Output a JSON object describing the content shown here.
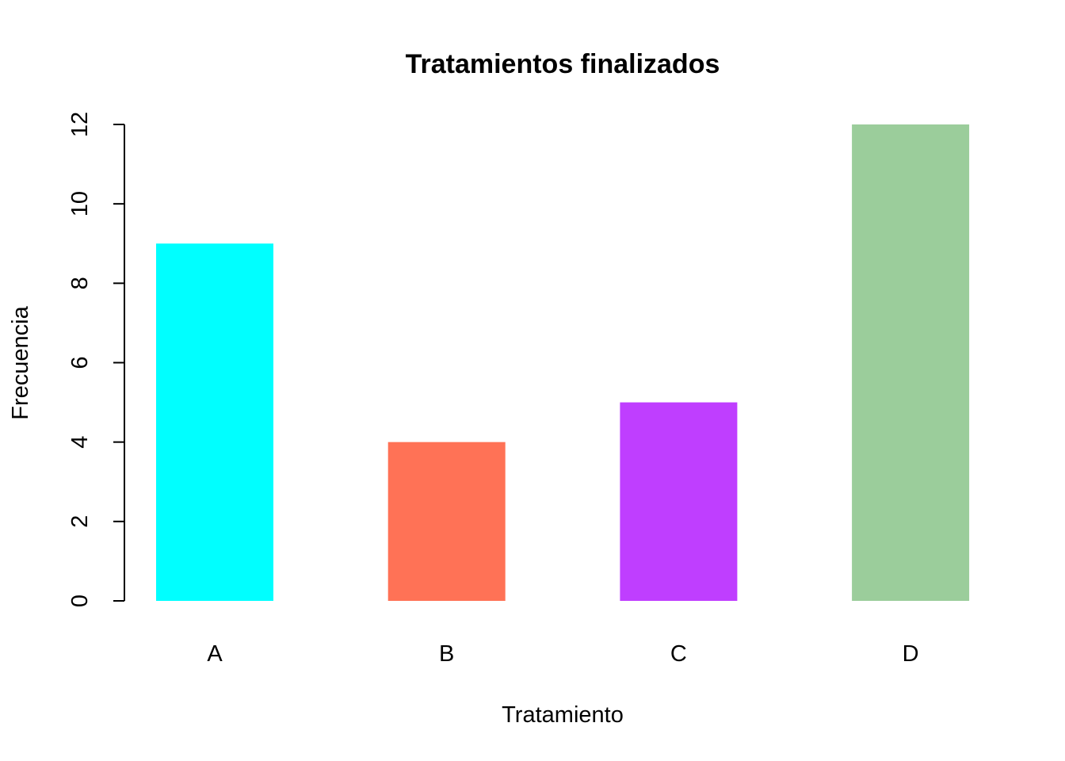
{
  "chart_data": {
    "type": "bar",
    "title": "Tratamientos finalizados",
    "xlabel": "Tratamiento",
    "ylabel": "Frecuencia",
    "categories": [
      "A",
      "B",
      "C",
      "D"
    ],
    "values": [
      9,
      4,
      5,
      12
    ],
    "colors": [
      "#00FFFF",
      "#FF7256",
      "#BF3EFF",
      "#9BCD9B"
    ],
    "ylim": [
      0,
      12
    ],
    "yticks": [
      "0",
      "2",
      "4",
      "6",
      "8",
      "10",
      "12"
    ],
    "grid": false,
    "legend": "none"
  }
}
